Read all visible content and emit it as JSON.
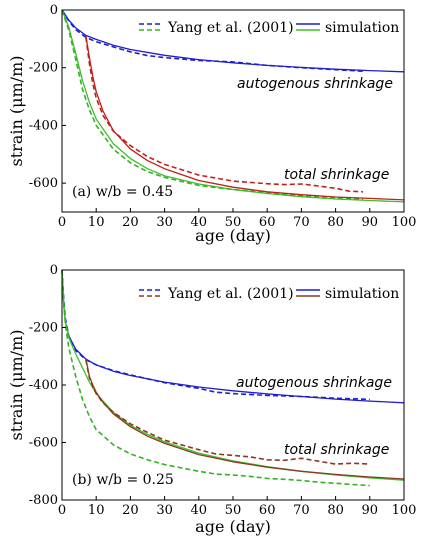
{
  "colors": {
    "autogenous": "#1f1fcf",
    "total_top": "#c0201c",
    "total_bottom": "#8b3a22",
    "basic": "#3fbf2a",
    "basic_exp": "#2fb51f"
  },
  "chart_data": [
    {
      "type": "line",
      "panel_label": "(a) w/b = 0.45",
      "xlabel": "age (day)",
      "ylabel": "strain (μm/m)",
      "xlim": [
        0,
        100
      ],
      "ylim": [
        -700,
        0
      ],
      "xticks": [
        0,
        10,
        20,
        30,
        40,
        50,
        60,
        70,
        80,
        90,
        100
      ],
      "yticks": [
        0,
        -200,
        -400,
        -600
      ],
      "legend": {
        "position": "top-right",
        "dashed_label": "Yang et al. (2001)",
        "solid_label": "simulation"
      },
      "annotations": [
        "autogenous shrinkage",
        "total shrinkage"
      ],
      "series": [
        {
          "color_key": "autogenous",
          "style": "solid",
          "x": [
            0,
            2,
            4,
            7,
            10,
            15,
            20,
            30,
            40,
            50,
            60,
            70,
            80,
            90,
            100
          ],
          "y": [
            0,
            -35,
            -62,
            -88,
            -102,
            -122,
            -137,
            -157,
            -172,
            -183,
            -192,
            -199,
            -205,
            -210,
            -214
          ]
        },
        {
          "color_key": "autogenous",
          "style": "dashed",
          "x": [
            0,
            2,
            4,
            7,
            10,
            15,
            20,
            25,
            30,
            40,
            50,
            60,
            70,
            80,
            88
          ],
          "y": [
            0,
            -38,
            -68,
            -95,
            -110,
            -128,
            -145,
            -158,
            -165,
            -175,
            -180,
            -192,
            -200,
            -207,
            -212
          ]
        },
        {
          "color_key": "basic",
          "style": "solid",
          "x": [
            0,
            2,
            4,
            6,
            8,
            10,
            15,
            20,
            25,
            30,
            40,
            50,
            60,
            70,
            80,
            90,
            100
          ],
          "y": [
            0,
            -60,
            -150,
            -245,
            -320,
            -378,
            -463,
            -515,
            -550,
            -575,
            -603,
            -622,
            -636,
            -647,
            -655,
            -660,
            -665
          ]
        },
        {
          "color_key": "basic_exp",
          "style": "dashed",
          "x": [
            0,
            2,
            4,
            6,
            8,
            10,
            15,
            20,
            25,
            30,
            40,
            50,
            60,
            70,
            80,
            88
          ],
          "y": [
            0,
            -70,
            -170,
            -275,
            -345,
            -400,
            -482,
            -530,
            -560,
            -580,
            -608,
            -622,
            -633,
            -643,
            -650,
            -655
          ]
        },
        {
          "color_key": "total_top",
          "style": "solid",
          "x": [
            7,
            8,
            9,
            10,
            12,
            15,
            20,
            25,
            30,
            40,
            50,
            60,
            70,
            80,
            90,
            100
          ],
          "y": [
            -88,
            -165,
            -230,
            -283,
            -350,
            -418,
            -482,
            -522,
            -550,
            -591,
            -614,
            -630,
            -640,
            -648,
            -653,
            -658
          ]
        },
        {
          "color_key": "total_top",
          "style": "dashed",
          "x": [
            7,
            8,
            9,
            10,
            12,
            15,
            20,
            25,
            30,
            40,
            50,
            60,
            65,
            70,
            75,
            80,
            84,
            88
          ],
          "y": [
            -95,
            -185,
            -255,
            -305,
            -365,
            -420,
            -470,
            -508,
            -535,
            -572,
            -593,
            -602,
            -605,
            -603,
            -610,
            -618,
            -628,
            -630
          ]
        }
      ]
    },
    {
      "type": "line",
      "panel_label": "(b) w/b = 0.25",
      "xlabel": "age (day)",
      "ylabel": "strain (μm/m)",
      "xlim": [
        0,
        100
      ],
      "ylim": [
        -800,
        0
      ],
      "xticks": [
        0,
        10,
        20,
        30,
        40,
        50,
        60,
        70,
        80,
        90,
        100
      ],
      "yticks": [
        0,
        -200,
        -400,
        -600,
        -800
      ],
      "legend": {
        "position": "top-right",
        "dashed_label": "Yang et al. (2001)",
        "solid_label": "simulation"
      },
      "annotations": [
        "autogenous shrinkage",
        "total shrinkage"
      ],
      "series": [
        {
          "color_key": "autogenous",
          "style": "solid",
          "x": [
            0,
            0.5,
            1,
            2,
            4,
            7,
            10,
            15,
            20,
            30,
            40,
            50,
            60,
            70,
            80,
            90,
            100
          ],
          "y": [
            0,
            -120,
            -180,
            -230,
            -275,
            -310,
            -330,
            -352,
            -367,
            -390,
            -407,
            -420,
            -431,
            -440,
            -449,
            -456,
            -462
          ]
        },
        {
          "color_key": "autogenous",
          "style": "dashed",
          "x": [
            0,
            0.5,
            1,
            2,
            4,
            7,
            10,
            15,
            20,
            30,
            40,
            45,
            50,
            60,
            70,
            80,
            90
          ],
          "y": [
            0,
            -100,
            -170,
            -230,
            -280,
            -312,
            -330,
            -350,
            -365,
            -392,
            -412,
            -425,
            -430,
            -436,
            -440,
            -446,
            -450
          ]
        },
        {
          "color_key": "basic",
          "style": "solid",
          "x": [
            0,
            0.5,
            1,
            2,
            4,
            6,
            8,
            10,
            15,
            20,
            25,
            30,
            40,
            50,
            60,
            70,
            80,
            90,
            100
          ],
          "y": [
            0,
            -120,
            -180,
            -235,
            -292,
            -340,
            -390,
            -430,
            -495,
            -540,
            -572,
            -598,
            -637,
            -664,
            -684,
            -700,
            -713,
            -723,
            -731
          ]
        },
        {
          "color_key": "basic_exp",
          "style": "dashed",
          "x": [
            0,
            0.5,
            1,
            2,
            4,
            6,
            8,
            10,
            15,
            20,
            25,
            30,
            40,
            45,
            50,
            55,
            60,
            65,
            70,
            75,
            80,
            85,
            90
          ],
          "y": [
            0,
            -110,
            -190,
            -270,
            -370,
            -450,
            -510,
            -555,
            -608,
            -640,
            -660,
            -677,
            -700,
            -710,
            -713,
            -718,
            -725,
            -728,
            -732,
            -738,
            -742,
            -746,
            -750
          ]
        },
        {
          "color_key": "total_bottom",
          "style": "solid",
          "x": [
            7,
            7.5,
            8,
            9,
            10,
            12,
            15,
            20,
            25,
            30,
            40,
            50,
            60,
            70,
            80,
            90,
            100
          ],
          "y": [
            -310,
            -340,
            -370,
            -400,
            -425,
            -460,
            -500,
            -545,
            -578,
            -603,
            -642,
            -667,
            -686,
            -700,
            -711,
            -720,
            -727
          ]
        },
        {
          "color_key": "total_bottom",
          "style": "dashed",
          "x": [
            7,
            7.5,
            8,
            9,
            10,
            12,
            15,
            20,
            25,
            30,
            40,
            45,
            50,
            55,
            60,
            65,
            70,
            75,
            80,
            85,
            90
          ],
          "y": [
            -312,
            -345,
            -375,
            -405,
            -430,
            -462,
            -495,
            -535,
            -565,
            -592,
            -625,
            -640,
            -645,
            -650,
            -660,
            -662,
            -655,
            -665,
            -675,
            -672,
            -675
          ]
        }
      ]
    }
  ]
}
